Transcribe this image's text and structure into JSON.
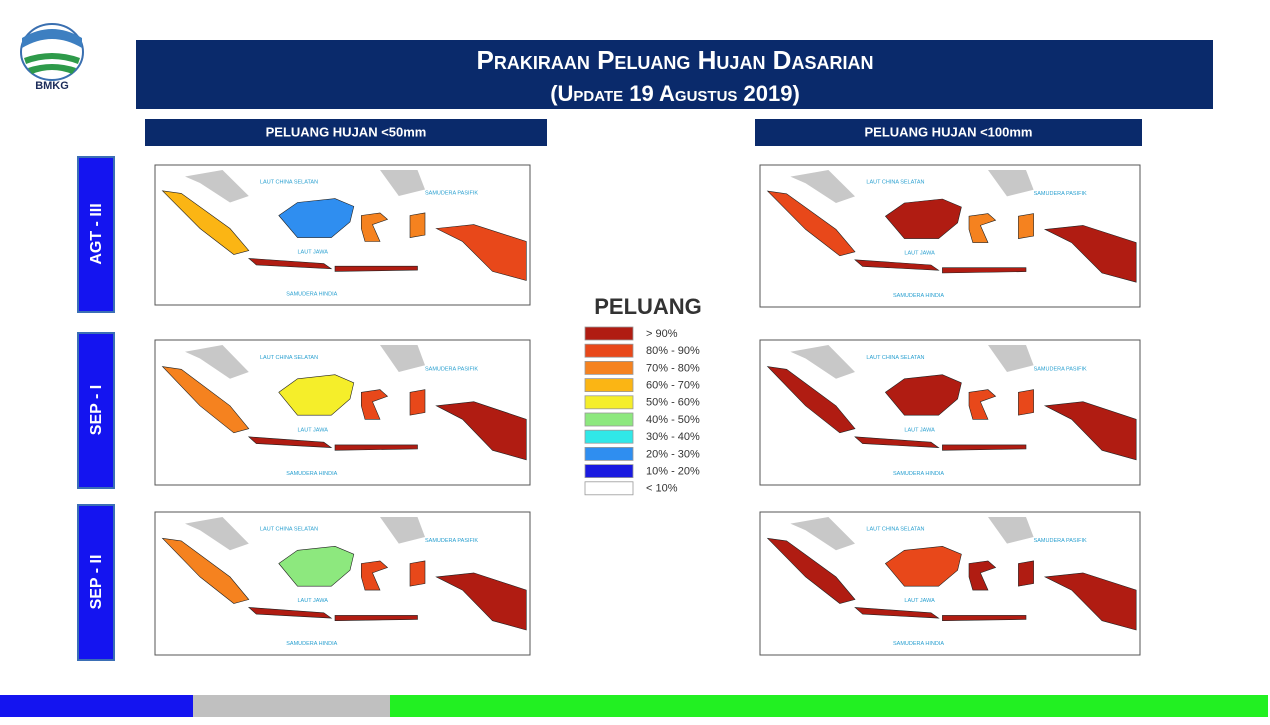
{
  "logo": {
    "text": "BMKG"
  },
  "header": {
    "title": "Prakiraan Peluang Hujan Dasarian",
    "subtitle": "(Update 19 Agustus 2019)"
  },
  "columns": [
    "PELUANG HUJAN <50mm",
    "PELUANG HUJAN <100mm"
  ],
  "rows": [
    "AGT - III",
    "SEP - I",
    "SEP - II"
  ],
  "map_labels": [
    "LAUT CHINA SELATAN",
    "SAMUDERA PASIFIK",
    "SAMUDERA HINDIA",
    "LAUT JAWA"
  ],
  "legend": {
    "title": "PELUANG",
    "items": [
      {
        "label": "> 90%",
        "color": "#b01c12"
      },
      {
        "label": "80% - 90%",
        "color": "#e8481a"
      },
      {
        "label": "70% - 80%",
        "color": "#f5821f"
      },
      {
        "label": "60% - 70%",
        "color": "#fbb514"
      },
      {
        "label": "50% - 60%",
        "color": "#f5ee2a"
      },
      {
        "label": "40% - 50%",
        "color": "#8de87e"
      },
      {
        "label": "30% - 40%",
        "color": "#30e8e8"
      },
      {
        "label": "20% - 30%",
        "color": "#2f8ef0"
      },
      {
        "label": "10% - 20%",
        "color": "#1a1ae0"
      },
      {
        "label": "< 10%",
        "color": "#ffffff"
      }
    ]
  }
}
